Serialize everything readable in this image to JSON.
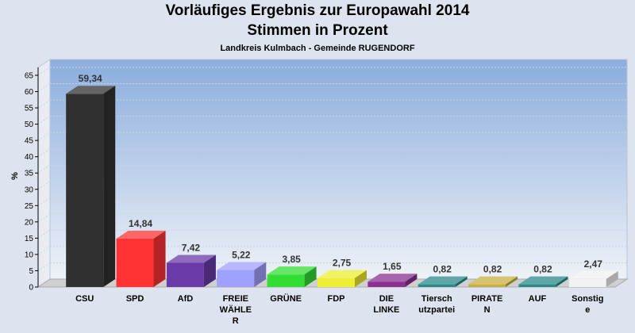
{
  "header": {
    "title": "Vorläufiges Ergebnis zur Europawahl 2014",
    "subtitle": "Stimmen in Prozent",
    "caption": "Landkreis Kulmbach - Gemeinde RUGENDORF"
  },
  "chart_data": {
    "type": "bar",
    "title": "Vorläufiges Ergebnis zur Europawahl 2014",
    "subtitle": "Stimmen in Prozent",
    "xlabel": "",
    "ylabel": "%",
    "ylim": [
      0,
      65
    ],
    "yticks": [
      0,
      5,
      10,
      15,
      20,
      25,
      30,
      35,
      40,
      45,
      50,
      55,
      60,
      65
    ],
    "grid": true,
    "categories": [
      [
        "CSU"
      ],
      [
        "SPD"
      ],
      [
        "AfD"
      ],
      [
        "FREIE",
        "WÄHLE",
        "R"
      ],
      [
        "GRÜNE"
      ],
      [
        "FDP"
      ],
      [
        "DIE",
        "LINKE"
      ],
      [
        "Tiersch",
        "utzpartei"
      ],
      [
        "PIRATE",
        "N"
      ],
      [
        "AUF"
      ],
      [
        "Sonstig",
        "e"
      ]
    ],
    "values": [
      59.34,
      14.84,
      7.42,
      5.22,
      3.85,
      2.75,
      1.65,
      0.82,
      0.82,
      0.82,
      2.47
    ],
    "value_labels": [
      "59,34",
      "14,84",
      "7,42",
      "5,22",
      "3,85",
      "2,75",
      "1,65",
      "0,82",
      "0,82",
      "0,82",
      "2,47"
    ],
    "colors": [
      "#303030",
      "#ff3333",
      "#6a3aa8",
      "#a0a0ff",
      "#33dd33",
      "#eeee33",
      "#8a3090",
      "#2a8a8a",
      "#c8b040",
      "#2a8a8a",
      "#f2f2f2"
    ]
  }
}
